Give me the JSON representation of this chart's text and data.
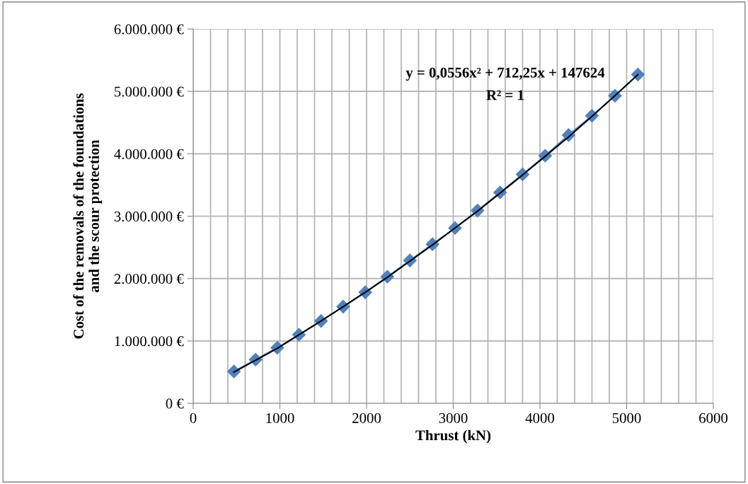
{
  "chart_data": {
    "type": "line",
    "xlabel": "Thrust (kN)",
    "ylabel": "Cost of the removals of the foundations\nand the scour protection",
    "annotations": [
      "y = 0,0556x² + 712,25x + 147624",
      "R² = 1"
    ],
    "x": [
      470,
      720,
      970,
      1220,
      1475,
      1730,
      1985,
      2240,
      2500,
      2760,
      3020,
      3280,
      3540,
      3800,
      4060,
      4330,
      4600,
      4865,
      5130
    ],
    "series": [
      {
        "color": "#4f81bd",
        "marker": "diamond",
        "line_style": "solid",
        "values": [
          510000,
          700000,
          890000,
          1100000,
          1320000,
          1550000,
          1780000,
          2030000,
          2290000,
          2550000,
          2810000,
          3090000,
          3380000,
          3670000,
          3970000,
          4300000,
          4610000,
          4930000,
          5270000
        ]
      },
      {
        "type": "line",
        "color": "#000000",
        "marker": "none",
        "line_style": "solid",
        "values": [
          500000,
          690000,
          880000,
          1100000,
          1320000,
          1550000,
          1780000,
          2020000,
          2280000,
          2540000,
          2810000,
          3080000,
          3370000,
          3660000,
          3960000,
          4270000,
          4600000,
          4930000,
          5270000
        ]
      }
    ],
    "xlim": [
      0,
      6000
    ],
    "xticks": [
      0,
      {
        "value": 200,
        "label": null
      },
      {
        "value": 400,
        "label": null
      },
      {
        "value": 600,
        "label": null
      },
      {
        "value": 800,
        "label": null
      },
      1000,
      {
        "value": 1200,
        "label": null
      },
      {
        "value": 1400,
        "label": null
      },
      {
        "value": 1600,
        "label": null
      },
      {
        "value": 1800,
        "label": null
      },
      2000,
      {
        "value": 2200,
        "label": null
      },
      {
        "value": 2400,
        "label": null
      },
      {
        "value": 2600,
        "label": null
      },
      {
        "value": 2800,
        "label": null
      },
      3000,
      {
        "value": 3200,
        "label": null
      },
      {
        "value": 3400,
        "label": null
      },
      {
        "value": 3600,
        "label": null
      },
      {
        "value": 3800,
        "label": null
      },
      4000,
      {
        "value": 4200,
        "label": null
      },
      {
        "value": 4400,
        "label": null
      },
      {
        "value": 4600,
        "label": null
      },
      {
        "value": 4800,
        "label": null
      },
      5000,
      {
        "value": 5200,
        "label": null
      },
      {
        "value": 5400,
        "label": null
      },
      {
        "value": 5600,
        "label": null
      },
      {
        "value": 5800,
        "label": null
      },
      6000
    ],
    "ylim": [
      0,
      6000000
    ],
    "yticks": [
      {
        "value": 0,
        "label": "0 €"
      },
      {
        "value": 1000000,
        "label": "1.000.000 €"
      },
      {
        "value": 2000000,
        "label": "2.000.000 €"
      },
      {
        "value": 3000000,
        "label": "3.000.000 €"
      },
      {
        "value": 4000000,
        "label": "4.000.000 €"
      },
      {
        "value": 5000000,
        "label": "5.000.000 €"
      },
      {
        "value": 6000000,
        "label": "6.000.000 €"
      }
    ],
    "grid": true,
    "legend": false
  }
}
